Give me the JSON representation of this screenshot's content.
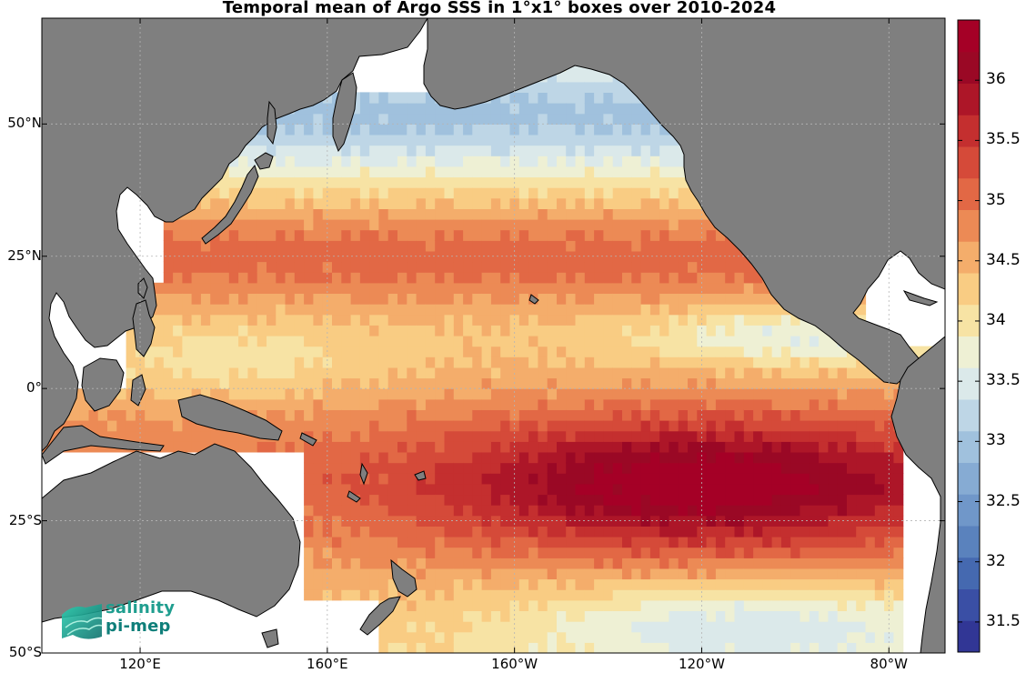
{
  "title": "Temporal mean of Argo SSS in 1°x1° boxes over 2010-2024",
  "lat_labels": [
    {
      "label": "50°N",
      "lat": 50
    },
    {
      "label": "25°N",
      "lat": 25
    },
    {
      "label": "0°",
      "lat": 0
    },
    {
      "label": "25°S",
      "lat": -25
    },
    {
      "label": "50°S",
      "lat": -50
    }
  ],
  "lon_labels": [
    {
      "label": "120°E",
      "lon": 120
    },
    {
      "label": "160°E",
      "lon": 160
    },
    {
      "label": "160°W",
      "lon": 200
    },
    {
      "label": "120°W",
      "lon": 240
    },
    {
      "label": "80°W",
      "lon": 280
    }
  ],
  "colorbar": {
    "min": 31.25,
    "max": 36.5,
    "ticks": [
      {
        "label": "31.5",
        "value": 31.5
      },
      {
        "label": "32",
        "value": 32
      },
      {
        "label": "32.5",
        "value": 32.5
      },
      {
        "label": "33",
        "value": 33
      },
      {
        "label": "33.5",
        "value": 33.5
      },
      {
        "label": "34",
        "value": 34
      },
      {
        "label": "34.5",
        "value": 34.5
      },
      {
        "label": "35",
        "value": 35
      },
      {
        "label": "35.5",
        "value": 35.5
      },
      {
        "label": "36",
        "value": 36
      }
    ],
    "colors": [
      "#313695",
      "#3a4fa5",
      "#4569b0",
      "#5a82bd",
      "#7097c9",
      "#86abd3",
      "#a0c1dd",
      "#bed6e6",
      "#dbe9ea",
      "#eef0d4",
      "#f7e3a4",
      "#f9cc83",
      "#f4ad6b",
      "#ec8a55",
      "#e26845",
      "#d54a39",
      "#c42f2f",
      "#ad1628",
      "#9a0825",
      "#a50026"
    ]
  },
  "logo": {
    "line1": "salinity",
    "line2": "pi-mep"
  },
  "map_extent": {
    "lon_min": 99,
    "lon_max": 292,
    "lat_min": -50,
    "lat_max": 70
  }
}
